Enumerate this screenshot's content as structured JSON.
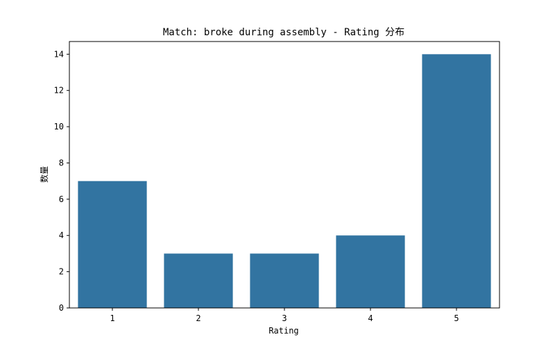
{
  "chart_data": {
    "type": "bar",
    "title": "Match: broke during assembly - Rating 分布",
    "xlabel": "Rating",
    "ylabel": "数量",
    "categories": [
      "1",
      "2",
      "3",
      "4",
      "5"
    ],
    "values": [
      7,
      3,
      3,
      4,
      14
    ],
    "yticks": [
      0,
      2,
      4,
      6,
      8,
      10,
      12,
      14
    ],
    "ylim": [
      0,
      14.7
    ],
    "bar_color": "#3274a1",
    "grid": false,
    "legend": "none"
  }
}
